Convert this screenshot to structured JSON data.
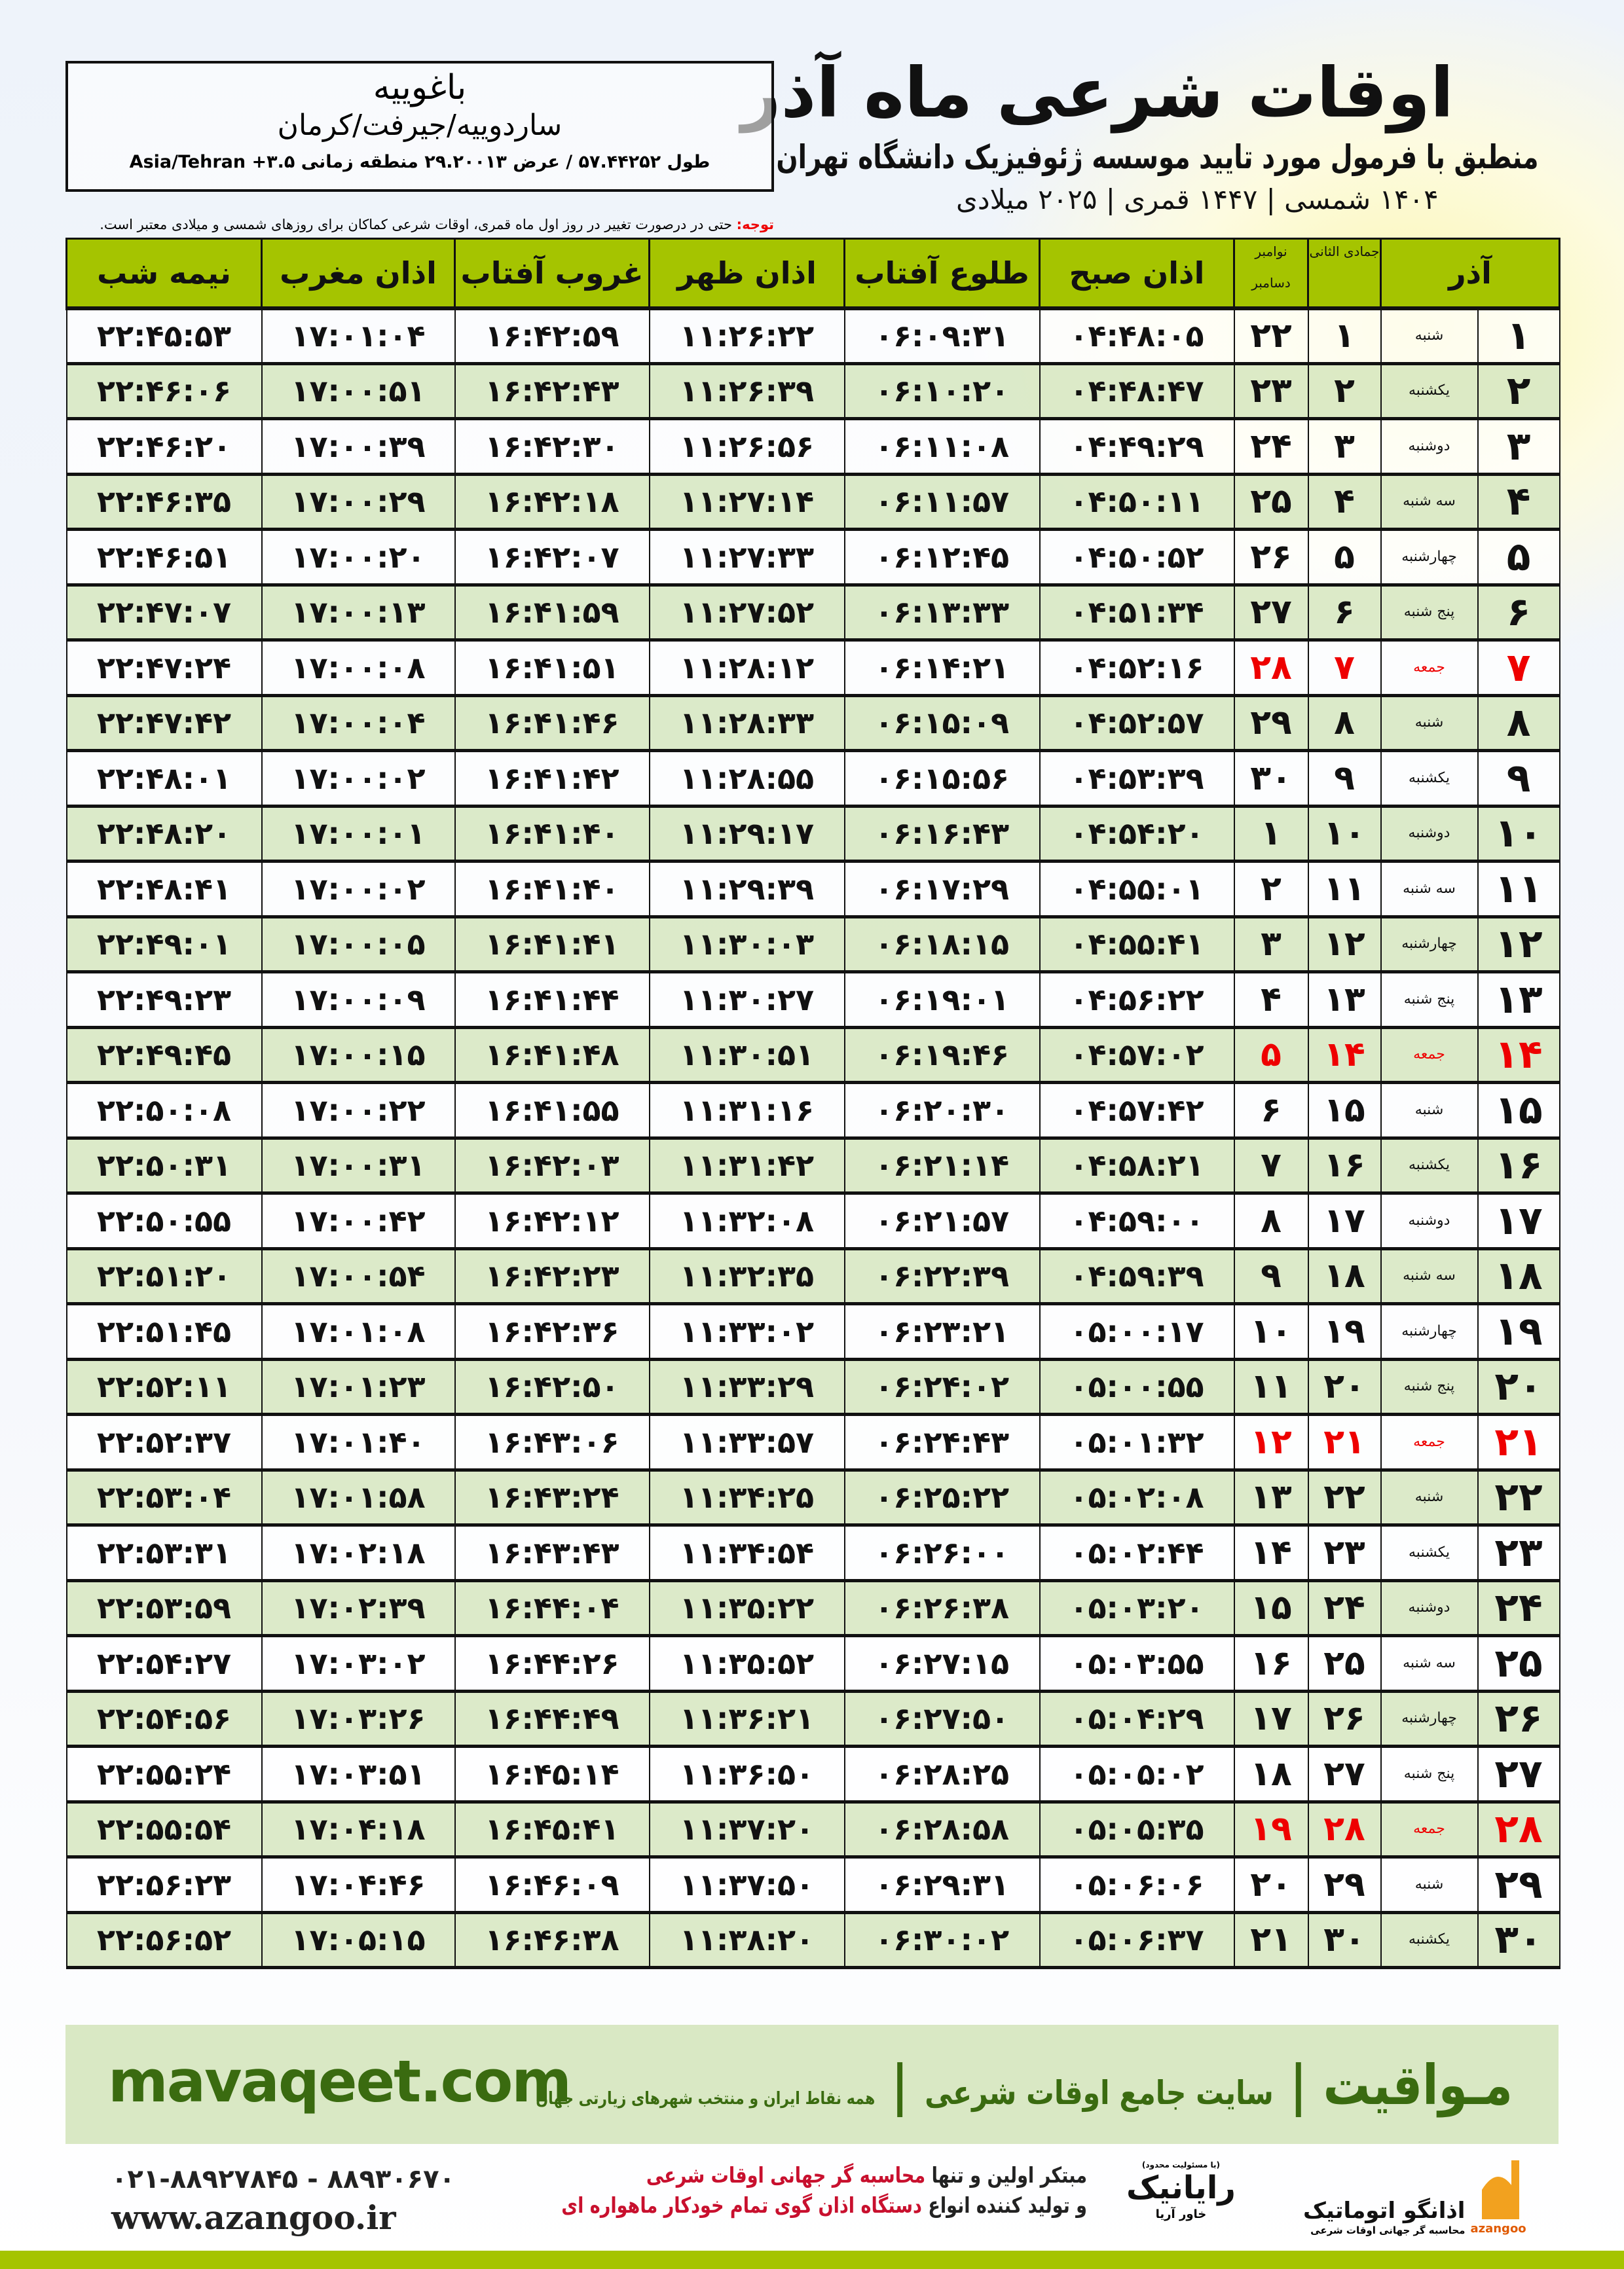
{
  "header": {
    "title": "اوقات شرعی ماه آذر",
    "subtitle": "منطبق با فرمول مورد تایید موسسه ژئوفیزیک دانشگاه تهران",
    "dateline": "۱۴۰۴ شمسی | ۱۴۴۷ قمری | ۲۰۲۵ میلادی"
  },
  "location": {
    "city": "باغوییه",
    "path": "ساردوییه/جیرفت/کرمان",
    "coords": "طول ۵۷.۴۴۲۵۲ / عرض ۲۹.۲۰۰۱۳ منطقه زمانی ۳.۵+ Asia/Tehran"
  },
  "note": {
    "label": "توجه:",
    "text": " حتی در درصورت تغییر در روز اول ماه قمری، اوقات شرعی کماکان برای روزهای شمسی و میلادی معتبر است."
  },
  "columns": {
    "azar": "آذر",
    "hijri": "جمادی الثانی",
    "nov": "نوامبر",
    "dec": "دسامبر",
    "sobh": "اذان صبح",
    "tolu": "طلوع آفتاب",
    "zohr": "اذان ظهر",
    "ghorub": "غروب آفتاب",
    "maghrib": "اذان مغرب",
    "nime": "نیمه شب"
  },
  "colors": {
    "header_green": "#a5c400",
    "row_green": "#d9e8c4",
    "friday_red": "#e00000",
    "brand_green": "#3a6b10"
  },
  "rows": [
    [
      "۱",
      "شنبه",
      "۱",
      "۲۲",
      "۰۴:۴۸:۰۵",
      "۰۶:۰۹:۳۱",
      "۱۱:۲۶:۲۲",
      "۱۶:۴۲:۵۹",
      "۱۷:۰۱:۰۴",
      "۲۲:۴۵:۵۳"
    ],
    [
      "۲",
      "یکشنبه",
      "۲",
      "۲۳",
      "۰۴:۴۸:۴۷",
      "۰۶:۱۰:۲۰",
      "۱۱:۲۶:۳۹",
      "۱۶:۴۲:۴۳",
      "۱۷:۰۰:۵۱",
      "۲۲:۴۶:۰۶"
    ],
    [
      "۳",
      "دوشنبه",
      "۳",
      "۲۴",
      "۰۴:۴۹:۲۹",
      "۰۶:۱۱:۰۸",
      "۱۱:۲۶:۵۶",
      "۱۶:۴۲:۳۰",
      "۱۷:۰۰:۳۹",
      "۲۲:۴۶:۲۰"
    ],
    [
      "۴",
      "سه شنبه",
      "۴",
      "۲۵",
      "۰۴:۵۰:۱۱",
      "۰۶:۱۱:۵۷",
      "۱۱:۲۷:۱۴",
      "۱۶:۴۲:۱۸",
      "۱۷:۰۰:۲۹",
      "۲۲:۴۶:۳۵"
    ],
    [
      "۵",
      "چهارشنبه",
      "۵",
      "۲۶",
      "۰۴:۵۰:۵۲",
      "۰۶:۱۲:۴۵",
      "۱۱:۲۷:۳۳",
      "۱۶:۴۲:۰۷",
      "۱۷:۰۰:۲۰",
      "۲۲:۴۶:۵۱"
    ],
    [
      "۶",
      "پنج شنبه",
      "۶",
      "۲۷",
      "۰۴:۵۱:۳۴",
      "۰۶:۱۳:۳۳",
      "۱۱:۲۷:۵۲",
      "۱۶:۴۱:۵۹",
      "۱۷:۰۰:۱۳",
      "۲۲:۴۷:۰۷"
    ],
    [
      "۷",
      "جمعه",
      "۷",
      "۲۸",
      "۰۴:۵۲:۱۶",
      "۰۶:۱۴:۲۱",
      "۱۱:۲۸:۱۲",
      "۱۶:۴۱:۵۱",
      "۱۷:۰۰:۰۸",
      "۲۲:۴۷:۲۴"
    ],
    [
      "۸",
      "شنبه",
      "۸",
      "۲۹",
      "۰۴:۵۲:۵۷",
      "۰۶:۱۵:۰۹",
      "۱۱:۲۸:۳۳",
      "۱۶:۴۱:۴۶",
      "۱۷:۰۰:۰۴",
      "۲۲:۴۷:۴۲"
    ],
    [
      "۹",
      "یکشنبه",
      "۹",
      "۳۰",
      "۰۴:۵۳:۳۹",
      "۰۶:۱۵:۵۶",
      "۱۱:۲۸:۵۵",
      "۱۶:۴۱:۴۲",
      "۱۷:۰۰:۰۲",
      "۲۲:۴۸:۰۱"
    ],
    [
      "۱۰",
      "دوشنبه",
      "۱۰",
      "۱",
      "۰۴:۵۴:۲۰",
      "۰۶:۱۶:۴۳",
      "۱۱:۲۹:۱۷",
      "۱۶:۴۱:۴۰",
      "۱۷:۰۰:۰۱",
      "۲۲:۴۸:۲۰"
    ],
    [
      "۱۱",
      "سه شنبه",
      "۱۱",
      "۲",
      "۰۴:۵۵:۰۱",
      "۰۶:۱۷:۲۹",
      "۱۱:۲۹:۳۹",
      "۱۶:۴۱:۴۰",
      "۱۷:۰۰:۰۲",
      "۲۲:۴۸:۴۱"
    ],
    [
      "۱۲",
      "چهارشنبه",
      "۱۲",
      "۳",
      "۰۴:۵۵:۴۱",
      "۰۶:۱۸:۱۵",
      "۱۱:۳۰:۰۳",
      "۱۶:۴۱:۴۱",
      "۱۷:۰۰:۰۵",
      "۲۲:۴۹:۰۱"
    ],
    [
      "۱۳",
      "پنج شنبه",
      "۱۳",
      "۴",
      "۰۴:۵۶:۲۲",
      "۰۶:۱۹:۰۱",
      "۱۱:۳۰:۲۷",
      "۱۶:۴۱:۴۴",
      "۱۷:۰۰:۰۹",
      "۲۲:۴۹:۲۳"
    ],
    [
      "۱۴",
      "جمعه",
      "۱۴",
      "۵",
      "۰۴:۵۷:۰۲",
      "۰۶:۱۹:۴۶",
      "۱۱:۳۰:۵۱",
      "۱۶:۴۱:۴۸",
      "۱۷:۰۰:۱۵",
      "۲۲:۴۹:۴۵"
    ],
    [
      "۱۵",
      "شنبه",
      "۱۵",
      "۶",
      "۰۴:۵۷:۴۲",
      "۰۶:۲۰:۳۰",
      "۱۱:۳۱:۱۶",
      "۱۶:۴۱:۵۵",
      "۱۷:۰۰:۲۲",
      "۲۲:۵۰:۰۸"
    ],
    [
      "۱۶",
      "یکشنبه",
      "۱۶",
      "۷",
      "۰۴:۵۸:۲۱",
      "۰۶:۲۱:۱۴",
      "۱۱:۳۱:۴۲",
      "۱۶:۴۲:۰۳",
      "۱۷:۰۰:۳۱",
      "۲۲:۵۰:۳۱"
    ],
    [
      "۱۷",
      "دوشنبه",
      "۱۷",
      "۸",
      "۰۴:۵۹:۰۰",
      "۰۶:۲۱:۵۷",
      "۱۱:۳۲:۰۸",
      "۱۶:۴۲:۱۲",
      "۱۷:۰۰:۴۲",
      "۲۲:۵۰:۵۵"
    ],
    [
      "۱۸",
      "سه شنبه",
      "۱۸",
      "۹",
      "۰۴:۵۹:۳۹",
      "۰۶:۲۲:۳۹",
      "۱۱:۳۲:۳۵",
      "۱۶:۴۲:۲۳",
      "۱۷:۰۰:۵۴",
      "۲۲:۵۱:۲۰"
    ],
    [
      "۱۹",
      "چهارشنبه",
      "۱۹",
      "۱۰",
      "۰۵:۰۰:۱۷",
      "۰۶:۲۳:۲۱",
      "۱۱:۳۳:۰۲",
      "۱۶:۴۲:۳۶",
      "۱۷:۰۱:۰۸",
      "۲۲:۵۱:۴۵"
    ],
    [
      "۲۰",
      "پنج شنبه",
      "۲۰",
      "۱۱",
      "۰۵:۰۰:۵۵",
      "۰۶:۲۴:۰۲",
      "۱۱:۳۳:۲۹",
      "۱۶:۴۲:۵۰",
      "۱۷:۰۱:۲۳",
      "۲۲:۵۲:۱۱"
    ],
    [
      "۲۱",
      "جمعه",
      "۲۱",
      "۱۲",
      "۰۵:۰۱:۳۲",
      "۰۶:۲۴:۴۳",
      "۱۱:۳۳:۵۷",
      "۱۶:۴۳:۰۶",
      "۱۷:۰۱:۴۰",
      "۲۲:۵۲:۳۷"
    ],
    [
      "۲۲",
      "شنبه",
      "۲۲",
      "۱۳",
      "۰۵:۰۲:۰۸",
      "۰۶:۲۵:۲۲",
      "۱۱:۳۴:۲۵",
      "۱۶:۴۳:۲۴",
      "۱۷:۰۱:۵۸",
      "۲۲:۵۳:۰۴"
    ],
    [
      "۲۳",
      "یکشنبه",
      "۲۳",
      "۱۴",
      "۰۵:۰۲:۴۴",
      "۰۶:۲۶:۰۰",
      "۱۱:۳۴:۵۴",
      "۱۶:۴۳:۴۳",
      "۱۷:۰۲:۱۸",
      "۲۲:۵۳:۳۱"
    ],
    [
      "۲۴",
      "دوشنبه",
      "۲۴",
      "۱۵",
      "۰۵:۰۳:۲۰",
      "۰۶:۲۶:۳۸",
      "۱۱:۳۵:۲۲",
      "۱۶:۴۴:۰۴",
      "۱۷:۰۲:۳۹",
      "۲۲:۵۳:۵۹"
    ],
    [
      "۲۵",
      "سه شنبه",
      "۲۵",
      "۱۶",
      "۰۵:۰۳:۵۵",
      "۰۶:۲۷:۱۵",
      "۱۱:۳۵:۵۲",
      "۱۶:۴۴:۲۶",
      "۱۷:۰۳:۰۲",
      "۲۲:۵۴:۲۷"
    ],
    [
      "۲۶",
      "چهارشنبه",
      "۲۶",
      "۱۷",
      "۰۵:۰۴:۲۹",
      "۰۶:۲۷:۵۰",
      "۱۱:۳۶:۲۱",
      "۱۶:۴۴:۴۹",
      "۱۷:۰۳:۲۶",
      "۲۲:۵۴:۵۶"
    ],
    [
      "۲۷",
      "پنج شنبه",
      "۲۷",
      "۱۸",
      "۰۵:۰۵:۰۲",
      "۰۶:۲۸:۲۵",
      "۱۱:۳۶:۵۰",
      "۱۶:۴۵:۱۴",
      "۱۷:۰۳:۵۱",
      "۲۲:۵۵:۲۴"
    ],
    [
      "۲۸",
      "جمعه",
      "۲۸",
      "۱۹",
      "۰۵:۰۵:۳۵",
      "۰۶:۲۸:۵۸",
      "۱۱:۳۷:۲۰",
      "۱۶:۴۵:۴۱",
      "۱۷:۰۴:۱۸",
      "۲۲:۵۵:۵۴"
    ],
    [
      "۲۹",
      "شنبه",
      "۲۹",
      "۲۰",
      "۰۵:۰۶:۰۶",
      "۰۶:۲۹:۳۱",
      "۱۱:۳۷:۵۰",
      "۱۶:۴۶:۰۹",
      "۱۷:۰۴:۴۶",
      "۲۲:۵۶:۲۳"
    ],
    [
      "۳۰",
      "یکشنبه",
      "۳۰",
      "۲۱",
      "۰۵:۰۶:۳۷",
      "۰۶:۳۰:۰۲",
      "۱۱:۳۸:۲۰",
      "۱۶:۴۶:۳۸",
      "۱۷:۰۵:۱۵",
      "۲۲:۵۶:۵۲"
    ]
  ],
  "footer": {
    "brand": "مـواقیت",
    "brand_tagline": "سایت جامع اوقات شرعی",
    "brand_sub": "همه نقاط ایران و منتخب شهرهای زیارتی جهان",
    "site": "mavaqeet.com",
    "phone": "۰۲۱-۸۸۹۲۷۸۴۵ - ۸۸۹۳۰۶۷۰",
    "web": "www.azangoo.ir",
    "promo_1a": "مبتکر اولین و تنها ",
    "promo_1b": "محاسبه گر جهانی اوقات شرعی",
    "promo_2a": "و تولید کننده انواع ",
    "promo_2b": "دستگاه اذان گوی تمام خودکار ماهواره ای",
    "rayanik_small": "(با مسئولیت محدود)",
    "rayanik": "رایانیک",
    "rayanik_sub": "خاور آریا",
    "azangoo": "اذانگو اتوماتیک",
    "azangoo_sub": "محاسبه گر جهانی اوقات شرعی",
    "azangoo_latin": "azangoo"
  }
}
